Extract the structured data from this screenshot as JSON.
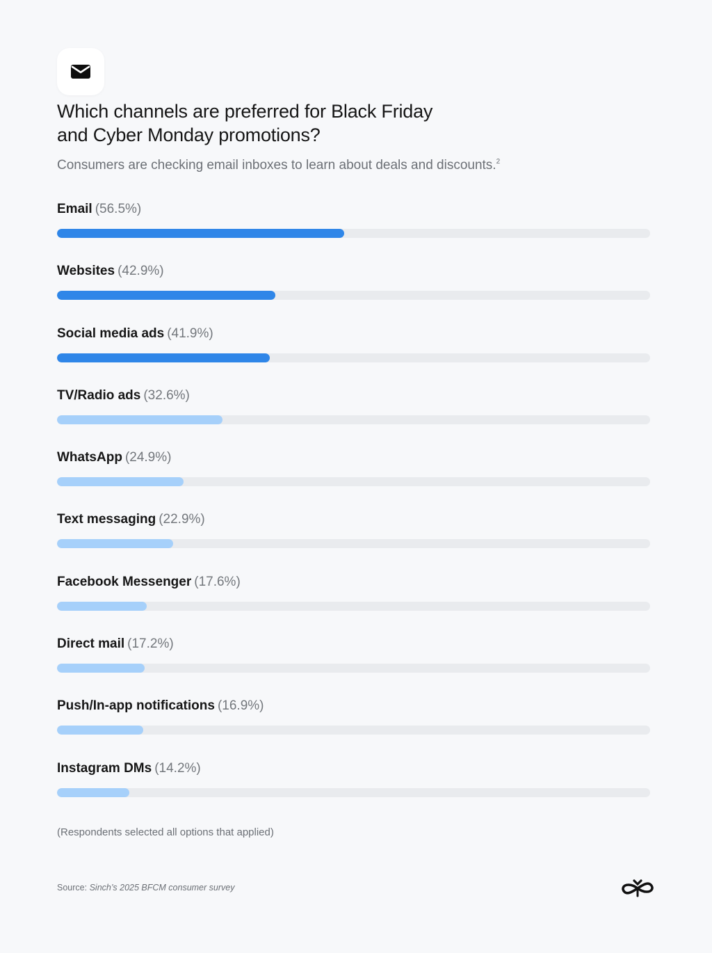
{
  "header": {
    "icon": "envelope-icon",
    "title_line1": "Which channels are preferred for Black Friday",
    "title_line2": "and Cyber Monday promotions?",
    "subtitle": "Consumers are checking email inboxes to learn about deals and discounts.",
    "subtitle_footnote": "2"
  },
  "colors": {
    "primary_bar": "#2f86e8",
    "secondary_bar": "#a6d0fa",
    "track": "#e9ebee",
    "background": "#f7f8fa"
  },
  "rows": [
    {
      "label": "Email",
      "value_text": "(56.5%)",
      "value": 56.5,
      "highlight": true
    },
    {
      "label": "Websites",
      "value_text": "(42.9%)",
      "value": 42.9,
      "highlight": true
    },
    {
      "label": "Social media ads",
      "value_text": "(41.9%)",
      "value": 41.9,
      "highlight": true
    },
    {
      "label": "TV/Radio ads",
      "value_text": "(32.6%)",
      "value": 32.6,
      "highlight": false
    },
    {
      "label": "WhatsApp",
      "value_text": "(24.9%)",
      "value": 24.9,
      "highlight": false
    },
    {
      "label": "Text messaging",
      "value_text": "(22.9%)",
      "value": 22.9,
      "highlight": false
    },
    {
      "label": "Facebook Messenger",
      "value_text": "(17.6%)",
      "value": 17.6,
      "highlight": false
    },
    {
      "label": "Direct mail",
      "value_text": "(17.2%)",
      "value": 17.2,
      "highlight": false
    },
    {
      "label": "Push/In-app notifications",
      "value_text": "(16.9%)",
      "value": 16.9,
      "highlight": false
    },
    {
      "label": "Instagram DMs",
      "value_text": "(14.2%)",
      "value": 14.2,
      "highlight": false
    }
  ],
  "footer": {
    "note": "(Respondents selected all options that applied)",
    "source_prefix": "Source:",
    "source_text": "Sinch’s 2025 BFCM consumer survey",
    "logo": "sinch-logo-icon"
  },
  "chart_data": {
    "type": "bar",
    "orientation": "horizontal",
    "title": "Which channels are preferred for Black Friday and Cyber Monday promotions?",
    "subtitle": "Consumers are checking email inboxes to learn about deals and discounts.",
    "categories": [
      "Email",
      "Websites",
      "Social media ads",
      "TV/Radio ads",
      "WhatsApp",
      "Text messaging",
      "Facebook Messenger",
      "Direct mail",
      "Push/In-app notifications",
      "Instagram DMs"
    ],
    "values": [
      56.5,
      42.9,
      41.9,
      32.6,
      24.9,
      22.9,
      17.6,
      17.2,
      16.9,
      14.2
    ],
    "unit": "%",
    "xlabel": "",
    "ylabel": "",
    "xlim": [
      0,
      116.7
    ],
    "grid": false,
    "legend": null,
    "annotations": [
      "(Respondents selected all options that applied)",
      "Source: Sinch’s 2025 BFCM consumer survey"
    ],
    "highlighted_categories": [
      "Email",
      "Websites",
      "Social media ads"
    ]
  },
  "scale_max": 116.7
}
